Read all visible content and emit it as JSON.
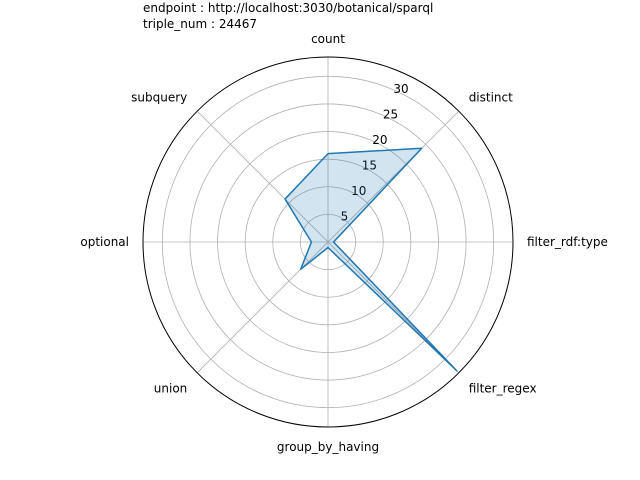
{
  "chart_data": {
    "type": "radar",
    "title_lines": [
      "endpoint : http://localhost:3030/botanical/sparql",
      "triple_num : 24467"
    ],
    "categories": [
      "count",
      "distinct",
      "filter_rdf:type",
      "filter_regex",
      "group_by_having",
      "union",
      "optional",
      "subquery"
    ],
    "series": [
      {
        "values": [
          16,
          24,
          1,
          33,
          1,
          7,
          3,
          11
        ]
      }
    ],
    "rticks": [
      5,
      10,
      15,
      20,
      25,
      30
    ],
    "rlim": [
      0,
      33.5
    ],
    "colors": {
      "line": "#1f77b4",
      "fill": "#1f77b4",
      "fill_opacity": 0.2
    },
    "grid": true
  }
}
